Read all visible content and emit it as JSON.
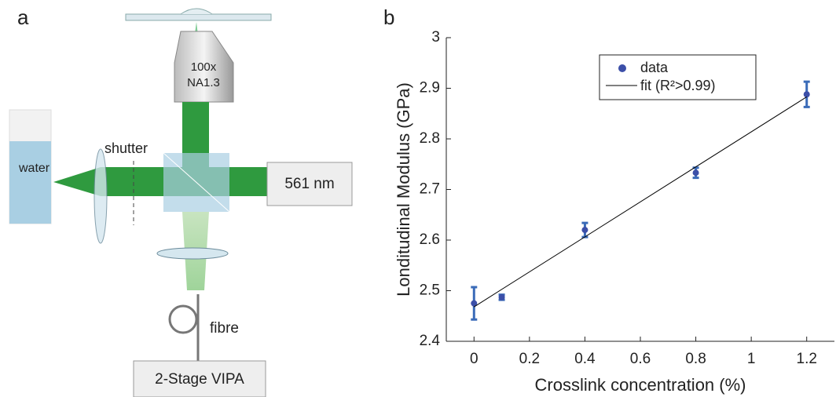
{
  "diagram": {
    "panel_label": "a",
    "objective_mag": "100x",
    "objective_na": "NA1.3",
    "shutter": "shutter",
    "water": "water",
    "laser": "561 nm",
    "fibre": "fibre",
    "spectrometer": "2-Stage VIPA"
  },
  "chart_data": {
    "type": "scatter",
    "panel_label": "b",
    "x_label": "Crosslink concentration (%)",
    "y_label": "Londitudinal Modulus (GPa)",
    "xlim": [
      -0.1,
      1.3
    ],
    "ylim": [
      2.4,
      3.0
    ],
    "xticks": [
      0,
      0.2,
      0.4,
      0.6,
      0.8,
      1,
      1.2
    ],
    "yticks": [
      2.4,
      2.5,
      2.6,
      2.7,
      2.8,
      2.9,
      3
    ],
    "legend": "upper-center",
    "series": [
      {
        "name": "data",
        "color": "#3c4fa8",
        "x": [
          0,
          0.1,
          0.4,
          0.8,
          1.2
        ],
        "values": [
          2.475,
          2.487,
          2.62,
          2.733,
          2.888
        ],
        "errors": [
          0.032,
          0.005,
          0.014,
          0.01,
          0.025
        ],
        "error_color": "#3a6bb8"
      },
      {
        "name": "fit (R²>0.99)",
        "color": "#000000",
        "x": [
          0,
          1.2
        ],
        "values": [
          2.468,
          2.883
        ]
      }
    ]
  }
}
